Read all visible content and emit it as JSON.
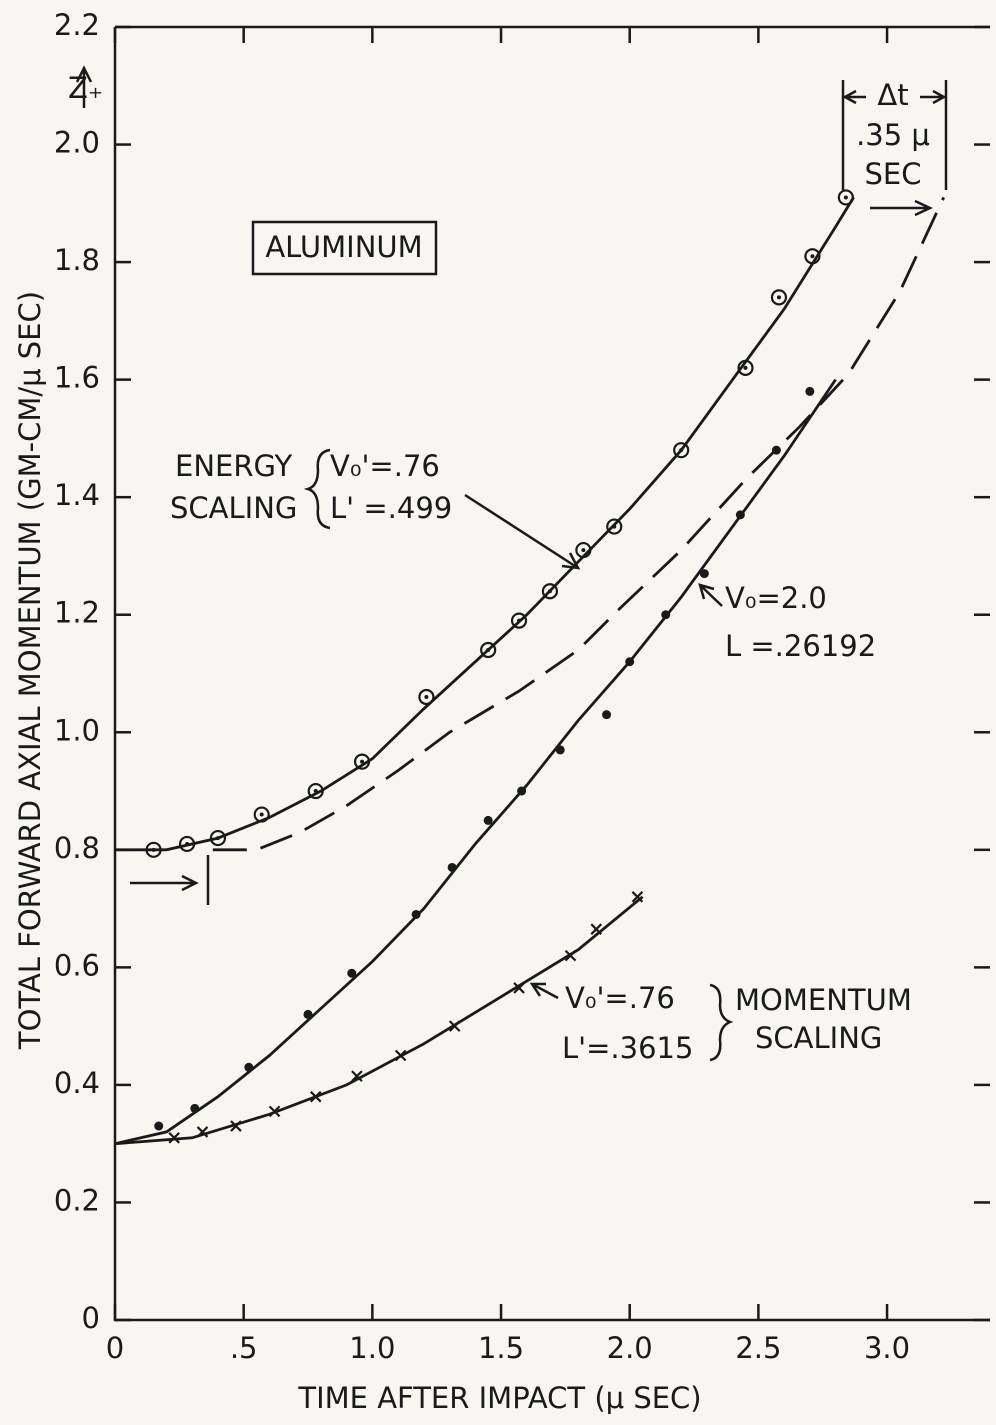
{
  "chart_data": {
    "type": "scatter",
    "xlabel": "TIME AFTER IMPACT (μ SEC)",
    "ylabel": "TOTAL FORWARD AXIAL MOMENTUM (GM-CM/μ SEC)",
    "xlim": [
      0,
      3.4
    ],
    "ylim": [
      0,
      2.2
    ],
    "xticks": [
      0,
      {
        "value": 0.5,
        "label": ".5"
      },
      {
        "value": 1.0,
        "label": "1.0"
      },
      1.5,
      {
        "value": 2.0,
        "label": "2.0"
      },
      2.5,
      {
        "value": 3.0,
        "label": "3.0"
      }
    ],
    "yticks": [
      0,
      0.2,
      0.4,
      0.6,
      0.8,
      {
        "value": 1.0,
        "label": "1.0"
      },
      1.2,
      1.4,
      1.6,
      1.8,
      {
        "value": 2.0,
        "label": "2.0"
      },
      2.2
    ],
    "grid": false,
    "series": [
      {
        "mode": "markers",
        "marker": "circle-dot",
        "color": "#1a1a1a",
        "x": [
          0.15,
          0.28,
          0.4,
          0.57,
          0.78,
          0.96,
          1.21,
          1.45,
          1.57,
          1.69,
          1.82,
          1.94,
          2.2,
          2.45,
          2.58,
          2.71,
          2.84
        ],
        "values": [
          0.8,
          0.81,
          0.82,
          0.86,
          0.9,
          0.95,
          1.06,
          1.14,
          1.19,
          1.24,
          1.31,
          1.35,
          1.48,
          1.62,
          1.74,
          1.81,
          1.91
        ]
      },
      {
        "mode": "markers",
        "marker": "dot",
        "color": "#1a1a1a",
        "x": [
          0.17,
          0.31,
          0.52,
          0.75,
          0.92,
          1.17,
          1.31,
          1.45,
          1.58,
          1.73,
          1.91,
          2.0,
          2.14,
          2.29,
          2.43,
          2.57,
          2.7
        ],
        "values": [
          0.33,
          0.36,
          0.43,
          0.52,
          0.59,
          0.69,
          0.77,
          0.85,
          0.9,
          0.97,
          1.03,
          1.12,
          1.2,
          1.27,
          1.37,
          1.48,
          1.58
        ]
      },
      {
        "mode": "markers",
        "marker": "x",
        "color": "#1a1a1a",
        "x": [
          0.23,
          0.34,
          0.47,
          0.62,
          0.78,
          0.94,
          1.11,
          1.32,
          1.57,
          1.77,
          1.87,
          2.03
        ],
        "values": [
          0.31,
          0.32,
          0.33,
          0.355,
          0.38,
          0.415,
          0.45,
          0.5,
          0.565,
          0.62,
          0.665,
          0.72
        ]
      },
      {
        "mode": "line",
        "dash": false,
        "color": "#1a1a1a",
        "x": [
          0,
          0.2,
          0.4,
          0.6,
          0.8,
          1.0,
          1.2,
          1.4,
          1.6,
          1.8,
          2.0,
          2.2,
          2.4,
          2.6,
          2.8,
          2.87
        ],
        "values": [
          0.8,
          0.8,
          0.82,
          0.855,
          0.9,
          0.955,
          1.04,
          1.12,
          1.2,
          1.29,
          1.38,
          1.48,
          1.6,
          1.72,
          1.86,
          1.91
        ]
      },
      {
        "mode": "line",
        "dash": false,
        "color": "#1a1a1a",
        "x": [
          0,
          0.2,
          0.4,
          0.6,
          0.8,
          1.0,
          1.2,
          1.4,
          1.6,
          1.8,
          2.0,
          2.2,
          2.4,
          2.6,
          2.8
        ],
        "values": [
          0.3,
          0.32,
          0.38,
          0.45,
          0.53,
          0.61,
          0.7,
          0.81,
          0.91,
          1.02,
          1.12,
          1.23,
          1.35,
          1.47,
          1.6
        ]
      },
      {
        "mode": "line",
        "dash": false,
        "color": "#1a1a1a",
        "x": [
          0,
          0.3,
          0.6,
          0.9,
          1.2,
          1.5,
          1.8,
          2.05
        ],
        "values": [
          0.3,
          0.31,
          0.35,
          0.4,
          0.47,
          0.55,
          0.63,
          0.72
        ]
      },
      {
        "mode": "line",
        "dash": true,
        "color": "#1a1a1a",
        "x": [
          0.38,
          0.55,
          0.72,
          0.9,
          1.1,
          1.3,
          1.57,
          1.8,
          1.96,
          2.2,
          2.45,
          2.66,
          2.85,
          3.05,
          3.22
        ],
        "values": [
          0.8,
          0.8,
          0.83,
          0.875,
          0.935,
          1.0,
          1.07,
          1.14,
          1.21,
          1.31,
          1.43,
          1.52,
          1.61,
          1.75,
          1.91
        ]
      }
    ],
    "annotations": [
      "Z₊",
      "ALUMINUM",
      "ENERGY",
      "SCALING",
      "V₀'=.76",
      "L' =.499",
      "V₀=2.0",
      "L =.26192",
      "V₀'=.76",
      "L'=.3615",
      "MOMENTUM",
      "SCALING",
      "Δt",
      ".35 μ",
      "SEC"
    ]
  }
}
